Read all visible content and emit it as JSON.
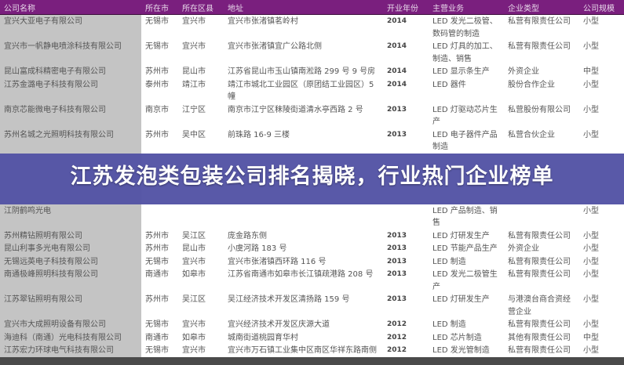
{
  "banner_title": "江苏发泡类包装公司排名揭晓，行业热门企业榜单",
  "table": {
    "headers": [
      "公司名称",
      "所在市",
      "所在区县",
      "地址",
      "开业年份",
      "主营业务",
      "企业类型",
      "公司规模"
    ],
    "rows": [
      [
        "宜兴大亚电子有限公司",
        "无锡市",
        "宜兴市",
        "宜兴市张渚镇茗岭村",
        "2014",
        "LED 发光二极管、数码管的制造",
        "私营有限责任公司",
        "小型"
      ],
      [
        "宜兴市一帆静电喷涂科技有限公司",
        "无锡市",
        "宜兴市",
        "宜兴市张渚镇宜广公路北侧",
        "2014",
        "LED 灯具的加工、制造、销售",
        "私营有限责任公司",
        "小型"
      ],
      [
        "昆山富成科精密电子有限公司",
        "苏州市",
        "昆山市",
        "江苏省昆山市玉山镇南淞路 299 号 9 号房",
        "2014",
        "LED 显示条生产",
        "外资企业",
        "中型"
      ],
      [
        "江苏金潞电子科技有限公司",
        "泰州市",
        "靖江市",
        "靖江市城北工业园区（原团结工业园区）5幢",
        "2014",
        "LED 器件",
        "股份合作企业",
        "小型"
      ],
      [
        "南京芯能微电子科技有限公司",
        "南京市",
        "江宁区",
        "南京市江宁区秣陵街道清水亭西路 2 号",
        "2013",
        "LED 灯驱动芯片生产",
        "私营股份有限公司",
        "小型"
      ],
      [
        "苏州名城之光照明科技有限公司",
        "苏州市",
        "吴中区",
        "前珠路 16-9 三楼",
        "2013",
        "LED 电子器件产品制造",
        "私营合伙企业",
        "小型"
      ],
      [
        "江阴鹤鸣光电",
        "",
        "",
        "",
        "",
        "LED 产品制造、销售",
        "",
        "小型"
      ],
      [
        "苏州精钻照明有限公司",
        "苏州市",
        "吴江区",
        "庞金路东侧",
        "2013",
        "LED 灯研发生产",
        "私营有限责任公司",
        "小型"
      ],
      [
        "昆山利事多光电有限公司",
        "苏州市",
        "昆山市",
        "小虞河路 183 号",
        "2013",
        "LED 节能产品生产",
        "外资企业",
        "小型"
      ],
      [
        "无锡远英电子科技有限公司",
        "无锡市",
        "宜兴市",
        "宜兴市张渚镇西环路 116 号",
        "2013",
        "LED 制造",
        "私营有限责任公司",
        "小型"
      ],
      [
        "南通极峰照明科技有限公司",
        "南通市",
        "如皋市",
        "江苏省南通市如皋市长江镇疏港路 208 号",
        "2013",
        "LED 发光二极管生产",
        "私营有限责任公司",
        "小型"
      ],
      [
        "江苏翠钻照明有限公司",
        "苏州市",
        "吴江区",
        "吴江经济技术开发区清扬路 159 号",
        "2013",
        "LED 灯研发生产",
        "与港澳台商合资经营企业",
        "小型"
      ],
      [
        "宜兴市大成照明设备有限公司",
        "无锡市",
        "宜兴市",
        "宜兴经济技术开发区庆源大道",
        "2012",
        "LED 制造",
        "私营有限责任公司",
        "小型"
      ],
      [
        "海迪科（南通）光电科技有限公司",
        "南通市",
        "如皋市",
        "城南街道桃园育华村",
        "2012",
        "LED 芯片制造",
        "其他有限责任公司",
        "中型"
      ],
      [
        "江苏宏力环球电气科技有限公司",
        "无锡市",
        "宜兴市",
        "宜兴市万石镇工业集中区南区华祥东路南侧",
        "2012",
        "LED 发光管制造",
        "私营有限责任公司",
        "小型"
      ]
    ]
  },
  "colors": {
    "header_bg": "#7a1f7e",
    "banner_bg": "#5454a5",
    "name_col_bg": "#c4c4c4"
  }
}
